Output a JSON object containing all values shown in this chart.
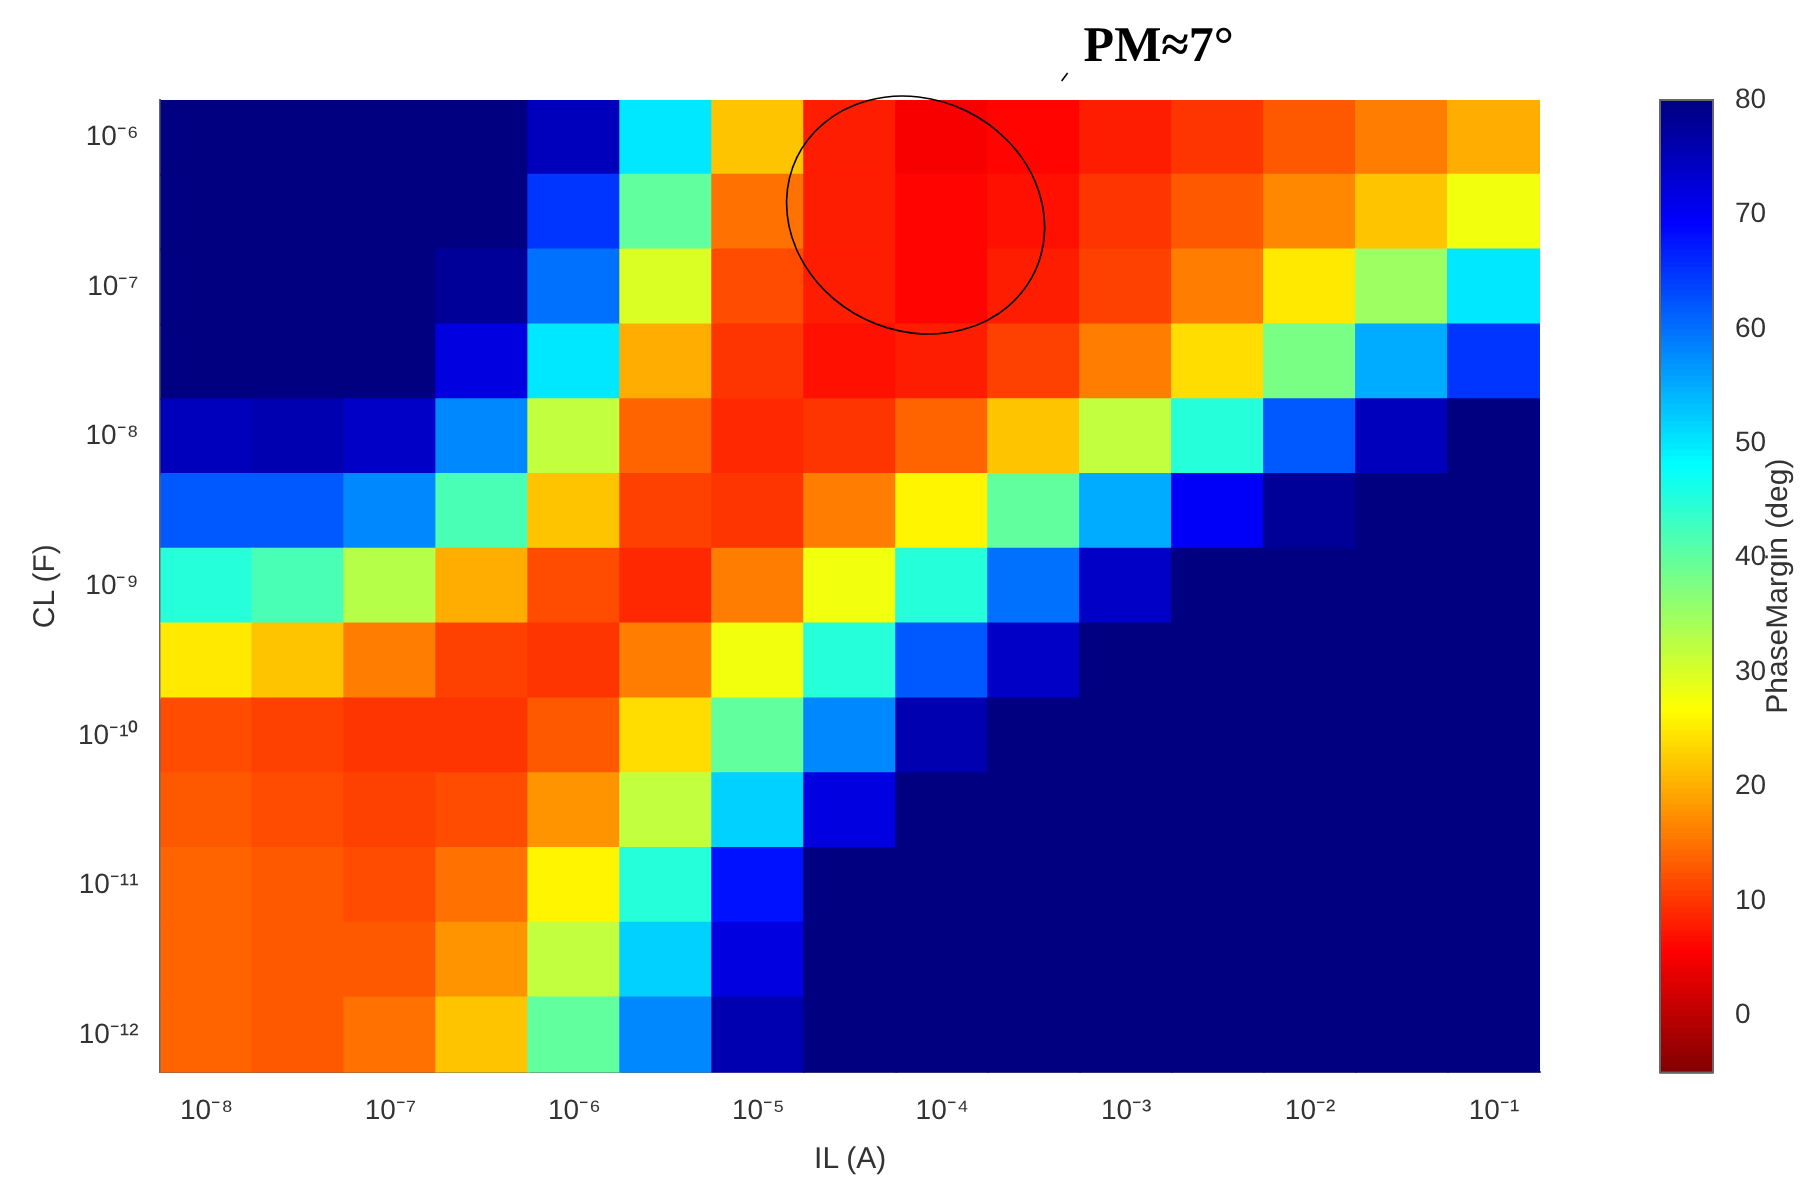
{
  "chart_data": {
    "type": "heatmap",
    "xlabel": "IL (A)",
    "ylabel": "CL (F)",
    "clabel": "PhaseMargin (deg)",
    "categories": [
      "10⁻⁸",
      null,
      "10⁻⁷",
      null,
      "10⁻⁶",
      null,
      "10⁻⁵",
      null,
      "10⁻⁴",
      null,
      "10⁻³",
      null,
      "10⁻²",
      null,
      "10⁻¹"
    ],
    "y_categories": [
      "10⁻⁶",
      null,
      "10⁻⁷",
      null,
      "10⁻⁸",
      null,
      "10⁻⁹",
      null,
      "10⁻¹⁰",
      null,
      "10⁻¹¹",
      null,
      "10⁻¹²"
    ],
    "cells": [
      [
        80,
        80,
        80,
        80,
        75,
        50,
        22,
        8,
        5,
        6,
        8,
        10,
        13,
        16,
        20
      ],
      [
        80,
        80,
        80,
        80,
        65,
        40,
        15,
        8,
        6,
        7,
        10,
        13,
        17,
        22,
        28
      ],
      [
        80,
        80,
        80,
        78,
        60,
        30,
        12,
        8,
        6,
        8,
        11,
        16,
        25,
        35,
        50
      ],
      [
        80,
        80,
        80,
        72,
        50,
        20,
        10,
        7,
        8,
        11,
        16,
        24,
        38,
        55,
        65
      ],
      [
        75,
        76,
        74,
        58,
        32,
        14,
        9,
        10,
        14,
        22,
        32,
        45,
        62,
        75,
        80
      ],
      [
        62,
        62,
        58,
        42,
        22,
        11,
        10,
        16,
        26,
        40,
        55,
        70,
        78,
        80,
        80
      ],
      [
        45,
        42,
        33,
        20,
        12,
        9,
        16,
        28,
        45,
        60,
        74,
        80,
        80,
        80,
        80
      ],
      [
        25,
        22,
        16,
        11,
        10,
        16,
        28,
        45,
        62,
        74,
        80,
        80,
        80,
        80,
        80
      ],
      [
        12,
        11,
        10,
        10,
        13,
        24,
        40,
        58,
        76,
        80,
        80,
        80,
        80,
        80,
        80
      ],
      [
        13,
        12,
        11,
        12,
        18,
        32,
        52,
        72,
        80,
        80,
        80,
        80,
        80,
        80,
        80
      ],
      [
        14,
        13,
        12,
        15,
        26,
        45,
        68,
        80,
        80,
        80,
        80,
        80,
        80,
        80,
        80
      ],
      [
        14,
        13,
        13,
        18,
        32,
        52,
        72,
        80,
        80,
        80,
        80,
        80,
        80,
        80,
        80
      ],
      [
        14,
        13,
        15,
        22,
        40,
        58,
        76,
        80,
        80,
        80,
        80,
        80,
        80,
        80,
        80
      ]
    ],
    "clim": [
      -5,
      80
    ],
    "cticks": [
      0,
      10,
      20,
      30,
      40,
      50,
      60,
      70,
      80
    ],
    "annotations": [
      "PM≈7°"
    ]
  }
}
